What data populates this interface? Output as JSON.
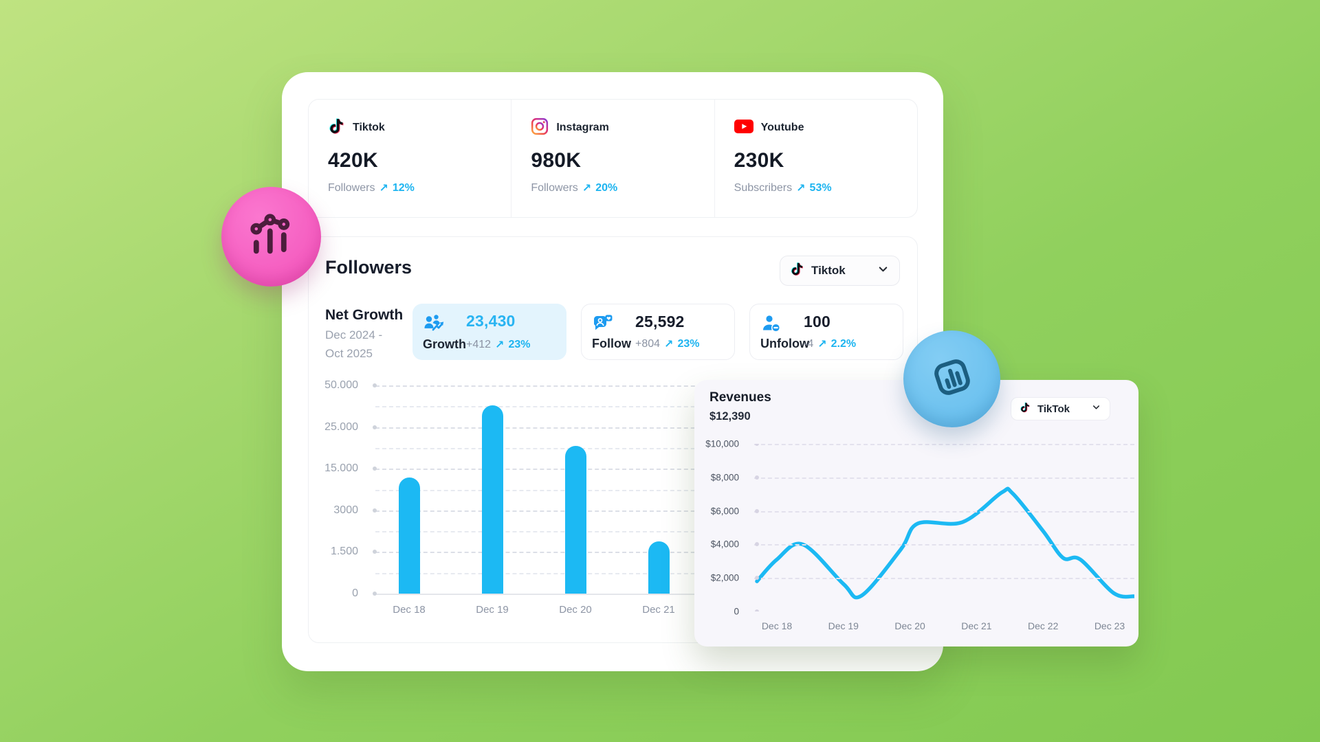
{
  "colors": {
    "accent_blue": "#1db4f0",
    "bar_line_blue": "#1cb9f3",
    "growth_chip_bg": "#e3f4fd",
    "card_bg": "#ffffff",
    "revenues_card_bg": "#f7f6fb",
    "deco_pink": "#f55fc1",
    "deco_blue": "#6ec2ef",
    "dark_text": "#171d2b",
    "gray_text": "#8d95a5"
  },
  "platform_stats": [
    {
      "name": "Tiktok",
      "icon": "tiktok-icon",
      "value": "420K",
      "metric": "Followers",
      "arrow": "↗",
      "change": "12%"
    },
    {
      "name": "Instagram",
      "icon": "instagram-icon",
      "value": "980K",
      "metric": "Followers",
      "arrow": "↗",
      "change": "20%"
    },
    {
      "name": "Youtube",
      "icon": "youtube-icon",
      "value": "230K",
      "metric": "Subscribers",
      "arrow": "↗",
      "change": "53%"
    }
  ],
  "followers": {
    "title": "Followers",
    "dropdown_label": "Tiktok",
    "net_growth_title": "Net Growth",
    "period_line1": "Dec 2024 -",
    "period_line2": "Oct 2025",
    "chips": [
      {
        "label": "Growth",
        "icon": "growth-icon",
        "value": "23,430",
        "delta": "+412",
        "arrow": "↗",
        "pct": "23%",
        "highlighted": true
      },
      {
        "label": "Follow",
        "icon": "follow-icon",
        "value": "25,592",
        "delta": "+804",
        "arrow": "↗",
        "pct": "23%",
        "highlighted": false
      },
      {
        "label": "Unfolow",
        "icon": "unfollow-icon",
        "value": "100",
        "delta": "-4",
        "arrow": "↗",
        "pct": "2.2%",
        "highlighted": false
      }
    ]
  },
  "revenues": {
    "title": "Revenues",
    "total": "$12,390",
    "dropdown_label": "TikTok"
  },
  "chart_data": [
    {
      "type": "bar",
      "title": "Followers net growth per day",
      "categories": [
        "Dec 18",
        "Dec 19",
        "Dec 20",
        "Dec 21"
      ],
      "values": [
        12500,
        38000,
        20500,
        1880
      ],
      "y_ticks": {
        "labels": [
          "0",
          "1.500",
          "3000",
          "15.000",
          "25.000",
          "50.000"
        ],
        "values": [
          0,
          1500,
          3000,
          15000,
          25000,
          50000
        ]
      },
      "ylim": [
        0,
        50000
      ],
      "xlabel": "",
      "ylabel": "",
      "grid": "dashed horizontal, minor lines between ticks, tick labels evenly spaced (non-linear scale)",
      "legend": "none",
      "bar_color": "#1cb9f3"
    },
    {
      "type": "line",
      "title": "Revenues per day",
      "x_tick_labels": [
        "Dec 18",
        "Dec 19",
        "Dec 20",
        "Dec 21",
        "Dec 22",
        "Dec 23"
      ],
      "y_ticks": {
        "labels": [
          "0",
          "$2,000",
          "$4,000",
          "$6,000",
          "$8,000",
          "$10,000"
        ],
        "values": [
          0,
          2000,
          4000,
          6000,
          8000,
          10000
        ]
      },
      "ylim": [
        0,
        10000
      ],
      "xlabel": "",
      "ylabel": "",
      "grid": "dashed horizontal at each tick",
      "legend": "none",
      "line_color": "#1cb9f3",
      "points_day_value": [
        [
          -0.3,
          1800
        ],
        [
          0.0,
          3100
        ],
        [
          0.39,
          4000
        ],
        [
          1.0,
          1640
        ],
        [
          1.27,
          940
        ],
        [
          1.86,
          3690
        ],
        [
          2.12,
          5250
        ],
        [
          2.79,
          5330
        ],
        [
          3.38,
          7100
        ],
        [
          3.54,
          7050
        ],
        [
          4.0,
          4800
        ],
        [
          4.3,
          3200
        ],
        [
          4.56,
          3100
        ],
        [
          5.06,
          1100
        ],
        [
          5.37,
          900
        ]
      ]
    }
  ]
}
